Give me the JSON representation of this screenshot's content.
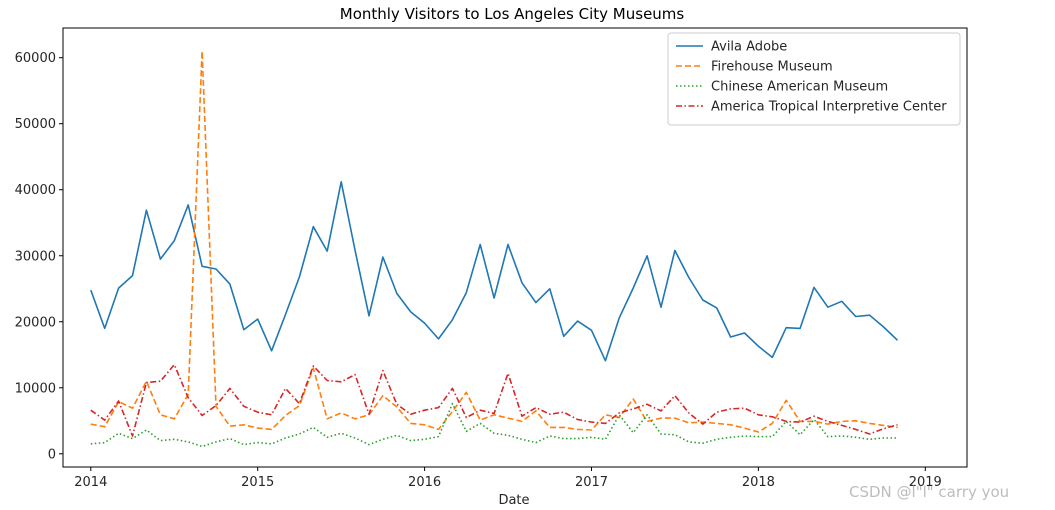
{
  "chart_data": {
    "type": "line",
    "title": "Monthly Visitors to Los Angeles City Museums",
    "xlabel": "Date",
    "ylabel": "",
    "x_ticks": [
      "2014",
      "2015",
      "2016",
      "2017",
      "2018",
      "2019"
    ],
    "y_ticks": [
      "0",
      "10000",
      "20000",
      "30000",
      "40000",
      "50000",
      "60000"
    ],
    "ylim": [
      -2000,
      64500
    ],
    "xlim": [
      -2,
      63
    ],
    "grid": false,
    "legend_position": "top-right",
    "x": [
      "2014-01",
      "2014-02",
      "2014-03",
      "2014-04",
      "2014-05",
      "2014-06",
      "2014-07",
      "2014-08",
      "2014-09",
      "2014-10",
      "2014-11",
      "2014-12",
      "2015-01",
      "2015-02",
      "2015-03",
      "2015-04",
      "2015-05",
      "2015-06",
      "2015-07",
      "2015-08",
      "2015-09",
      "2015-10",
      "2015-11",
      "2015-12",
      "2016-01",
      "2016-02",
      "2016-03",
      "2016-04",
      "2016-05",
      "2016-06",
      "2016-07",
      "2016-08",
      "2016-09",
      "2016-10",
      "2016-11",
      "2016-12",
      "2017-01",
      "2017-02",
      "2017-03",
      "2017-04",
      "2017-05",
      "2017-06",
      "2017-07",
      "2017-08",
      "2017-09",
      "2017-10",
      "2017-11",
      "2017-12",
      "2018-01",
      "2018-02",
      "2018-03",
      "2018-04",
      "2018-05",
      "2018-06",
      "2018-07",
      "2018-08",
      "2018-09",
      "2018-10",
      "2018-11"
    ],
    "series": [
      {
        "name": "Avila Adobe",
        "color": "#1f77b4",
        "dash": "solid",
        "values": [
          24800,
          19000,
          25100,
          27000,
          36900,
          29500,
          32300,
          37700,
          28400,
          28000,
          25700,
          18800,
          20400,
          15600,
          21100,
          26800,
          34400,
          30700,
          41200,
          30800,
          20900,
          29800,
          24300,
          21500,
          19800,
          17400,
          20300,
          24400,
          31700,
          23600,
          31700,
          25900,
          22900,
          25000,
          17800,
          20100,
          18700,
          14100,
          20600,
          25100,
          30000,
          22200,
          30800,
          26700,
          23300,
          22100,
          17700,
          18300,
          16300,
          14600,
          19100,
          19000,
          25200,
          22200,
          23100,
          20800,
          21000,
          19200,
          17200
        ]
      },
      {
        "name": "Firehouse Museum",
        "color": "#ff7f0e",
        "dash": "dashed",
        "values": [
          4500,
          4100,
          7900,
          6900,
          11000,
          5900,
          5300,
          9000,
          61000,
          7200,
          4200,
          4400,
          3900,
          3700,
          5800,
          7300,
          13000,
          5300,
          6200,
          5300,
          5900,
          8800,
          7100,
          4600,
          4400,
          3700,
          6400,
          9300,
          5100,
          5900,
          5400,
          4900,
          6500,
          4000,
          4000,
          3700,
          3600,
          5900,
          5500,
          8300,
          4900,
          5400,
          5400,
          4700,
          4800,
          4600,
          4400,
          3900,
          3300,
          4600,
          8100,
          4900,
          4900,
          4500,
          4900,
          5000,
          4600,
          4300,
          4000
        ]
      },
      {
        "name": "Chinese American Museum",
        "color": "#2ca02c",
        "dash": "dotted",
        "values": [
          1500,
          1700,
          3100,
          2300,
          3600,
          2000,
          2200,
          1800,
          1100,
          1800,
          2300,
          1400,
          1700,
          1500,
          2400,
          3000,
          4000,
          2500,
          3100,
          2400,
          1400,
          2200,
          2800,
          2000,
          2200,
          2600,
          7600,
          3400,
          4600,
          3100,
          2800,
          2200,
          1700,
          2700,
          2300,
          2300,
          2500,
          2200,
          5900,
          3200,
          5900,
          3000,
          2900,
          1800,
          1600,
          2200,
          2500,
          2700,
          2600,
          2600,
          4900,
          2900,
          5200,
          2600,
          2700,
          2500,
          2200,
          2400,
          2400
        ]
      },
      {
        "name": "America Tropical Interpretive Center",
        "color": "#d62728",
        "dash": "dashdot",
        "values": [
          6600,
          5100,
          8000,
          2700,
          10800,
          11000,
          13500,
          8500,
          5800,
          7300,
          9900,
          7200,
          6300,
          5900,
          9900,
          7600,
          13300,
          11100,
          10900,
          12000,
          6000,
          12600,
          7500,
          6000,
          6600,
          7000,
          9900,
          5500,
          6600,
          6100,
          12200,
          5700,
          7000,
          6000,
          6300,
          5200,
          4800,
          4600,
          6200,
          6800,
          7500,
          6500,
          8800,
          6200,
          4500,
          6300,
          6800,
          6900,
          5900,
          5600,
          4900,
          4800,
          5700,
          4900,
          4300,
          3700,
          3000,
          3800,
          4400
        ]
      }
    ]
  },
  "watermark": "CSDN @l\"l\" carry  you"
}
